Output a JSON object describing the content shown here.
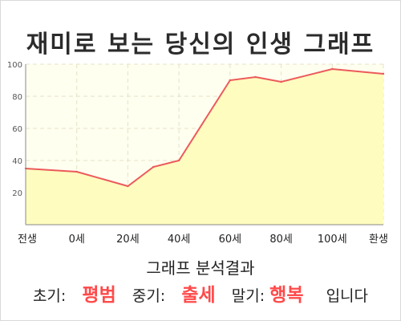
{
  "title": "재미로 보는 당신의 인생 그래프",
  "chart_data": {
    "type": "area",
    "x_categories": [
      "전생",
      "0세",
      "20세",
      "40세",
      "60세",
      "80세",
      "100세",
      "환생"
    ],
    "points": [
      {
        "x": "전생",
        "y": 35
      },
      {
        "x": "0세",
        "y": 33
      },
      {
        "x": "20세",
        "y": 24
      },
      {
        "x": "30세",
        "y": 36
      },
      {
        "x": "40세",
        "y": 40
      },
      {
        "x": "60세",
        "y": 90
      },
      {
        "x": "70세",
        "y": 92
      },
      {
        "x": "80세",
        "y": 89
      },
      {
        "x": "100세",
        "y": 97
      },
      {
        "x": "환생",
        "y": 94
      }
    ],
    "y_ticks": [
      20,
      40,
      60,
      80,
      100
    ],
    "ylim": [
      0,
      100
    ],
    "grid": true,
    "line_color": "#ec5a5a",
    "fill_color": "#fffcc0",
    "plot_background": "#fffff0"
  },
  "result": {
    "heading": "그래프 분석결과",
    "early_label": "초기:",
    "early_value": "평범",
    "middle_label": "중기:",
    "middle_value": "출세",
    "late_label": "말기:",
    "late_value": "행복",
    "ending": "입니다"
  }
}
